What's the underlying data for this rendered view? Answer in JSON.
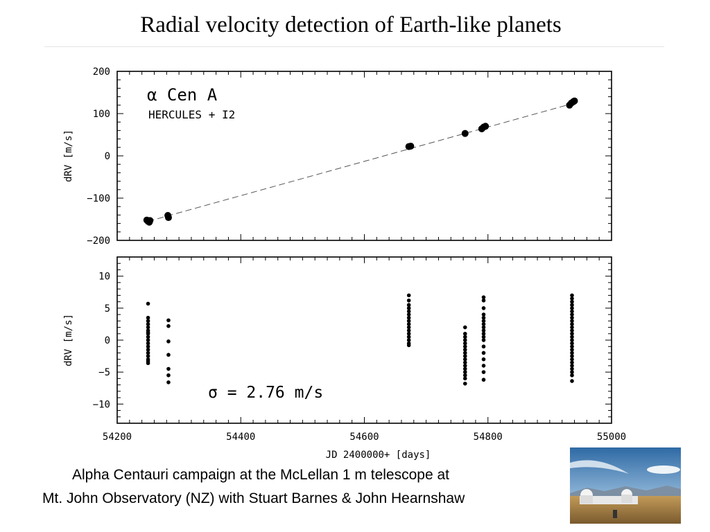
{
  "slide": {
    "title": "Radial velocity detection of Earth-like planets",
    "caption_line_1": "Alpha Centauri campaign at the McLellan 1 m telescope at",
    "caption_line_2": "Mt. John Observatory (NZ) with Stuart Barnes & John Hearnshaw"
  },
  "photo": {
    "icon": "observatory-photo",
    "sky_color": "#3e7fb8",
    "ground_color": "#b08a4a"
  },
  "chart_data": [
    {
      "type": "scatter",
      "id": "top",
      "annotation_1": "α Cen  A",
      "annotation_2": "HERCULES + I2",
      "ylabel": "dRV [m/s]",
      "xlim": [
        54200,
        55000
      ],
      "ylim": [
        -200,
        200
      ],
      "yticks": [
        200,
        100,
        0,
        -100,
        -200
      ],
      "ytick_labels": [
        "200",
        "100",
        "0",
        "−100",
        "−200"
      ],
      "trend_line": {
        "style": "dashed",
        "x": [
          54250,
          54940
        ],
        "y": [
          -155,
          125
        ]
      },
      "series": [
        {
          "x": [
            54248,
            54250,
            54252,
            54253,
            54282,
            54283,
            54672,
            54675,
            54763,
            54790,
            54793,
            54796,
            54932,
            54935,
            54938,
            54940
          ],
          "y": [
            -152,
            -155,
            -157,
            -153,
            -141,
            -146,
            22,
            23,
            53,
            64,
            68,
            70,
            120,
            125,
            128,
            130
          ]
        }
      ]
    },
    {
      "type": "scatter",
      "id": "bottom",
      "annotation_1": "σ  =  2.76  m/s",
      "xlabel": "JD 2400000+ [days]",
      "ylabel": "dRV [m/s]",
      "xlim": [
        54200,
        55000
      ],
      "ylim": [
        -13,
        13
      ],
      "xticks": [
        54200,
        54400,
        54600,
        54800,
        55000
      ],
      "xtick_labels": [
        "54200",
        "54400",
        "54600",
        "54800",
        "55000"
      ],
      "yticks": [
        10,
        5,
        0,
        -5,
        -10
      ],
      "ytick_labels": [
        "10",
        "5",
        "0",
        "−5",
        "−10"
      ],
      "series": [
        {
          "x": [
            54250,
            54250,
            54250,
            54250,
            54250,
            54250,
            54250,
            54250,
            54250,
            54250,
            54250,
            54250,
            54250,
            54250,
            54250,
            54250,
            54250,
            54250,
            54283,
            54283,
            54283,
            54283,
            54283,
            54283,
            54283,
            54672,
            54672,
            54672,
            54672,
            54672,
            54672,
            54672,
            54672,
            54672,
            54672,
            54672,
            54672,
            54672,
            54672,
            54672,
            54672,
            54763,
            54763,
            54763,
            54763,
            54763,
            54763,
            54763,
            54763,
            54763,
            54763,
            54763,
            54763,
            54763,
            54763,
            54763,
            54763,
            54763,
            54793,
            54793,
            54793,
            54793,
            54793,
            54793,
            54793,
            54793,
            54793,
            54793,
            54793,
            54793,
            54793,
            54793,
            54793,
            54793,
            54793,
            54793,
            54936,
            54936,
            54936,
            54936,
            54936,
            54936,
            54936,
            54936,
            54936,
            54936,
            54936,
            54936,
            54936,
            54936,
            54936,
            54936,
            54936,
            54936,
            54936,
            54936,
            54936,
            54936,
            54936,
            54936,
            54936,
            54936,
            54936
          ],
          "y": [
            5.7,
            3.5,
            3.0,
            2.5,
            2.0,
            1.5,
            1.0,
            0.5,
            0.0,
            -0.5,
            -1.0,
            -1.5,
            -2.0,
            -2.5,
            -3.0,
            -3.3,
            -3.6,
            1.2,
            3.1,
            2.2,
            -0.2,
            -2.3,
            -4.5,
            -5.5,
            -6.6,
            7.0,
            6.2,
            5.5,
            5.0,
            4.5,
            4.0,
            3.5,
            3.0,
            2.5,
            2.0,
            1.5,
            1.0,
            0.5,
            0.0,
            -0.5,
            -0.8,
            2.0,
            1.0,
            0.5,
            0.0,
            -0.5,
            -1.0,
            -1.5,
            -2.0,
            -2.5,
            -3.0,
            -3.5,
            -4.0,
            -4.5,
            -5.0,
            -5.5,
            -6.0,
            -6.8,
            6.7,
            6.2,
            5.0,
            4.0,
            3.5,
            3.0,
            2.5,
            2.0,
            1.5,
            1.0,
            0.5,
            0.0,
            -1.0,
            -2.0,
            -3.0,
            -4.0,
            -5.0,
            -6.2,
            7.0,
            6.5,
            6.0,
            5.5,
            5.0,
            4.5,
            4.0,
            3.5,
            3.0,
            2.5,
            2.0,
            1.5,
            1.0,
            0.5,
            0.0,
            -0.5,
            -1.0,
            -1.5,
            -2.0,
            -2.5,
            -3.0,
            -3.5,
            -4.0,
            -4.5,
            -5.0,
            -5.5,
            -6.4
          ]
        }
      ]
    }
  ]
}
